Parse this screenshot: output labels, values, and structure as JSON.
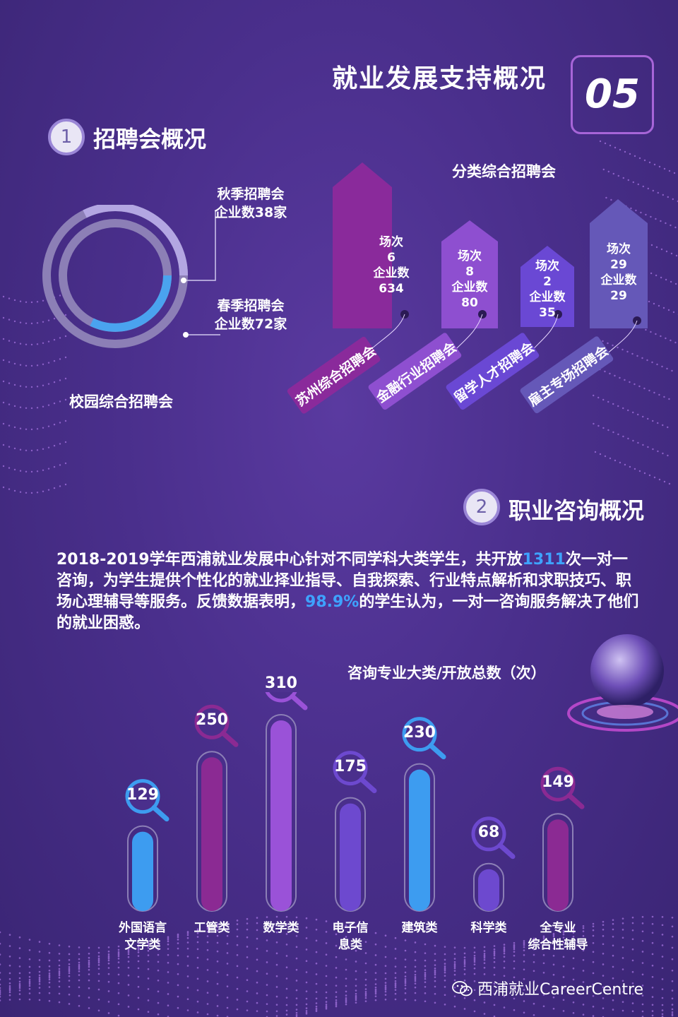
{
  "header": {
    "title": "就业发展支持概况",
    "number": "05"
  },
  "section1": {
    "index": "1",
    "title": "招聘会概况",
    "campus": {
      "label": "校园综合招聘会",
      "autumn": {
        "line1": "秋季招聘会",
        "line2": "企业数38家"
      },
      "spring": {
        "line1": "春季招聘会",
        "line2": "企业数72家"
      }
    },
    "category": {
      "title": "分类综合招聘会",
      "fairs": [
        {
          "name": "苏州综合招聘会",
          "line1": "场次",
          "line2": "6",
          "line3": "企业数",
          "line4": "634",
          "color": "#8a2a9b"
        },
        {
          "name": "金融行业招聘会",
          "line1": "场次",
          "line2": "8",
          "line3": "企业数",
          "line4": "80",
          "color": "#8e4fd0"
        },
        {
          "name": "留学人才招聘会",
          "line1": "场次",
          "line2": "2",
          "line3": "企业数",
          "line4": "35",
          "color": "#6a48d4"
        },
        {
          "name": "雇主专场招聘会",
          "line1": "场次",
          "line2": "29",
          "line3": "企业数",
          "line4": "29",
          "color": "#6558b8"
        }
      ]
    }
  },
  "section2": {
    "index": "2",
    "title": "职业咨询概况",
    "para": {
      "p1": "2018-2019学年西浦就业发展中心针对不同学科大类学生，共开放",
      "n1": "1311",
      "p2": "次一对一咨询，为学生提供个性化的就业择业指导、自我探索、行业特点解析和求职技巧、职场心理辅导等服务。反馈数据表明，",
      "n2": "98.9%",
      "p3": "的学生认为，一对一咨询服务解决了他们的就业困惑。"
    }
  },
  "chart_data": {
    "type": "bar",
    "title": "咨询专业大类/开放总数（次）",
    "categories": [
      "外国语言文学类",
      "工管类",
      "数学类",
      "电子信息类",
      "建筑类",
      "科学类",
      "全专业综合性辅导"
    ],
    "category_lines": [
      [
        "外国语言",
        "文学类"
      ],
      [
        "工管类"
      ],
      [
        "数学类"
      ],
      [
        "电子信",
        "息类"
      ],
      [
        "建筑类"
      ],
      [
        "科学类"
      ],
      [
        "全专业",
        "综合性辅导"
      ]
    ],
    "values": [
      129,
      250,
      310,
      175,
      230,
      68,
      149
    ],
    "colors": [
      "#3d9cf0",
      "#8b2a93",
      "#9a52d8",
      "#6d49cf",
      "#3d9cf0",
      "#6d49cf",
      "#8b2a93"
    ]
  },
  "footer": {
    "text": "西浦就业CareerCentre"
  }
}
